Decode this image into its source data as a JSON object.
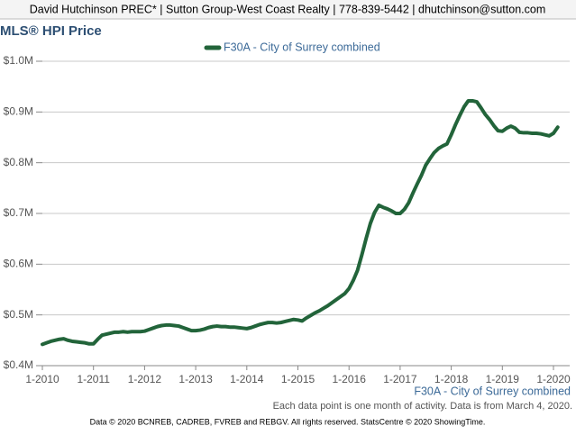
{
  "header": "David Hutchinson PREC* | Sutton Group-West Coast Realty | 778-839-5442 | dhutchinson@sutton.com",
  "chart_data": {
    "type": "line",
    "title": "MLS® HPI Price",
    "x_label": "F30A - City of Surrey combined",
    "note": "Each data point is one month of activity. Data is from March 4, 2020.",
    "legend": "top",
    "grid": true,
    "ylim": [
      400000,
      1000000
    ],
    "yticks": [
      {
        "value": 400000,
        "label": "$0.4M"
      },
      {
        "value": 500000,
        "label": "$0.5M"
      },
      {
        "value": 600000,
        "label": "$0.6M"
      },
      {
        "value": 700000,
        "label": "$0.7M"
      },
      {
        "value": 800000,
        "label": "$0.8M"
      },
      {
        "value": 900000,
        "label": "$0.9M"
      },
      {
        "value": 1000000,
        "label": "$1.0M"
      }
    ],
    "categories": [
      "1-2010",
      null,
      null,
      null,
      null,
      null,
      null,
      null,
      null,
      null,
      null,
      null,
      "1-2011",
      null,
      null,
      null,
      null,
      null,
      null,
      null,
      null,
      null,
      null,
      null,
      "1-2012",
      null,
      null,
      null,
      null,
      null,
      null,
      null,
      null,
      null,
      null,
      null,
      "1-2013",
      null,
      null,
      null,
      null,
      null,
      null,
      null,
      null,
      null,
      null,
      null,
      "1-2014",
      null,
      null,
      null,
      null,
      null,
      null,
      null,
      null,
      null,
      null,
      null,
      "1-2015",
      null,
      null,
      null,
      null,
      null,
      null,
      null,
      null,
      null,
      null,
      null,
      "1-2016",
      null,
      null,
      null,
      null,
      null,
      null,
      null,
      null,
      null,
      null,
      null,
      "1-2017",
      null,
      null,
      null,
      null,
      null,
      null,
      null,
      null,
      null,
      null,
      null,
      "1-2018",
      null,
      null,
      null,
      null,
      null,
      null,
      null,
      null,
      null,
      null,
      null,
      "1-2019",
      null,
      null,
      null,
      null,
      null,
      null,
      null,
      null,
      null,
      null,
      null,
      "1-2020",
      null
    ],
    "series": [
      {
        "name": "F30A - City of Surrey combined",
        "color": "#22643a",
        "values": [
          442000,
          445000,
          448000,
          450000,
          452000,
          453000,
          450000,
          448000,
          447000,
          446000,
          445000,
          443000,
          443000,
          452000,
          460000,
          462000,
          464000,
          466000,
          466000,
          467000,
          466000,
          467000,
          467000,
          467000,
          468000,
          471000,
          474000,
          477000,
          479000,
          480000,
          480000,
          479000,
          478000,
          475000,
          472000,
          469000,
          469000,
          470000,
          472000,
          475000,
          477000,
          478000,
          477000,
          477000,
          476000,
          476000,
          475000,
          474000,
          473000,
          475000,
          478000,
          481000,
          483000,
          485000,
          485000,
          484000,
          485000,
          487000,
          489000,
          491000,
          490000,
          488000,
          494000,
          499000,
          504000,
          508000,
          513000,
          518000,
          524000,
          530000,
          536000,
          542000,
          552000,
          568000,
          588000,
          618000,
          650000,
          680000,
          702000,
          716000,
          712000,
          709000,
          705000,
          700000,
          700000,
          708000,
          721000,
          740000,
          758000,
          775000,
          795000,
          808000,
          820000,
          828000,
          833000,
          837000,
          855000,
          875000,
          893000,
          910000,
          922000,
          922000,
          920000,
          908000,
          895000,
          885000,
          873000,
          863000,
          862000,
          868000,
          872000,
          868000,
          860000,
          859000,
          859000,
          858000,
          858000,
          857000,
          855000,
          853000,
          858000,
          870000
        ]
      }
    ]
  },
  "footer": "Data © 2020 BCNREB, CADREB, FVREB and REBGV. All rights reserved. StatsCentre © 2020 ShowingTime."
}
